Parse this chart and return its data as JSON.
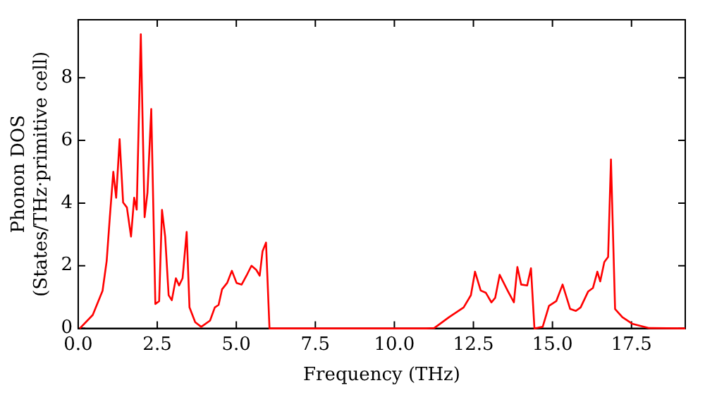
{
  "chart_data": {
    "type": "line",
    "xlabel": "Frequency (THz)",
    "ylabel": "Phonon DOS\n(States/THz·primitive cell)",
    "xlim": [
      0,
      19.2
    ],
    "xticks": [
      {
        "value": 0,
        "label": "0.0"
      },
      2.5,
      {
        "value": 5,
        "label": "5.0"
      },
      7.5,
      {
        "value": 10,
        "label": "10.0"
      },
      12.5,
      {
        "value": 15,
        "label": "15.0"
      },
      17.5
    ],
    "ylim": [
      0,
      9.85
    ],
    "yticks": [
      0,
      2,
      4,
      6,
      8
    ],
    "grid": false,
    "legend": false,
    "marker": "none",
    "line_style": "solid",
    "series": [
      {
        "color": "#ff0000",
        "x": [
          0.05,
          0.46,
          0.77,
          0.9,
          1.0,
          1.11,
          1.2,
          1.31,
          1.42,
          1.54,
          1.67,
          1.77,
          1.85,
          1.98,
          2.1,
          2.19,
          2.31,
          2.44,
          2.56,
          2.65,
          2.75,
          2.86,
          2.96,
          3.09,
          3.19,
          3.3,
          3.43,
          3.52,
          3.7,
          3.89,
          4.17,
          4.32,
          4.44,
          4.55,
          4.71,
          4.86,
          5.01,
          5.17,
          5.32,
          5.48,
          5.63,
          5.74,
          5.83,
          5.94,
          6.05,
          8.5,
          11.0,
          11.26,
          11.73,
          12.19,
          12.42,
          12.55,
          12.73,
          12.89,
          13.07,
          13.19,
          13.33,
          13.58,
          13.78,
          13.89,
          14.01,
          14.2,
          14.32,
          14.43,
          14.69,
          14.89,
          15.12,
          15.32,
          15.56,
          15.74,
          15.89,
          16.13,
          16.28,
          16.42,
          16.51,
          16.64,
          16.76,
          16.85,
          16.98,
          17.21,
          17.52,
          18.06,
          19.2
        ],
        "values": [
          0,
          0.43,
          1.2,
          2.15,
          3.55,
          5.0,
          4.17,
          6.04,
          4.02,
          3.86,
          2.93,
          4.17,
          3.79,
          9.39,
          3.55,
          4.33,
          7.0,
          0.78,
          0.87,
          3.78,
          2.93,
          1.06,
          0.9,
          1.6,
          1.37,
          1.6,
          3.08,
          0.67,
          0.2,
          0.05,
          0.25,
          0.67,
          0.75,
          1.25,
          1.45,
          1.84,
          1.45,
          1.4,
          1.68,
          2.0,
          1.87,
          1.68,
          2.46,
          2.74,
          0,
          0,
          0,
          0.01,
          0.36,
          0.67,
          1.06,
          1.81,
          1.21,
          1.14,
          0.83,
          0.98,
          1.71,
          1.21,
          0.83,
          1.96,
          1.4,
          1.37,
          1.92,
          0,
          0.05,
          0.72,
          0.87,
          1.4,
          0.62,
          0.56,
          0.67,
          1.18,
          1.29,
          1.81,
          1.5,
          2.12,
          2.28,
          5.39,
          0.62,
          0.36,
          0.15,
          0.01,
          0
        ]
      }
    ]
  }
}
